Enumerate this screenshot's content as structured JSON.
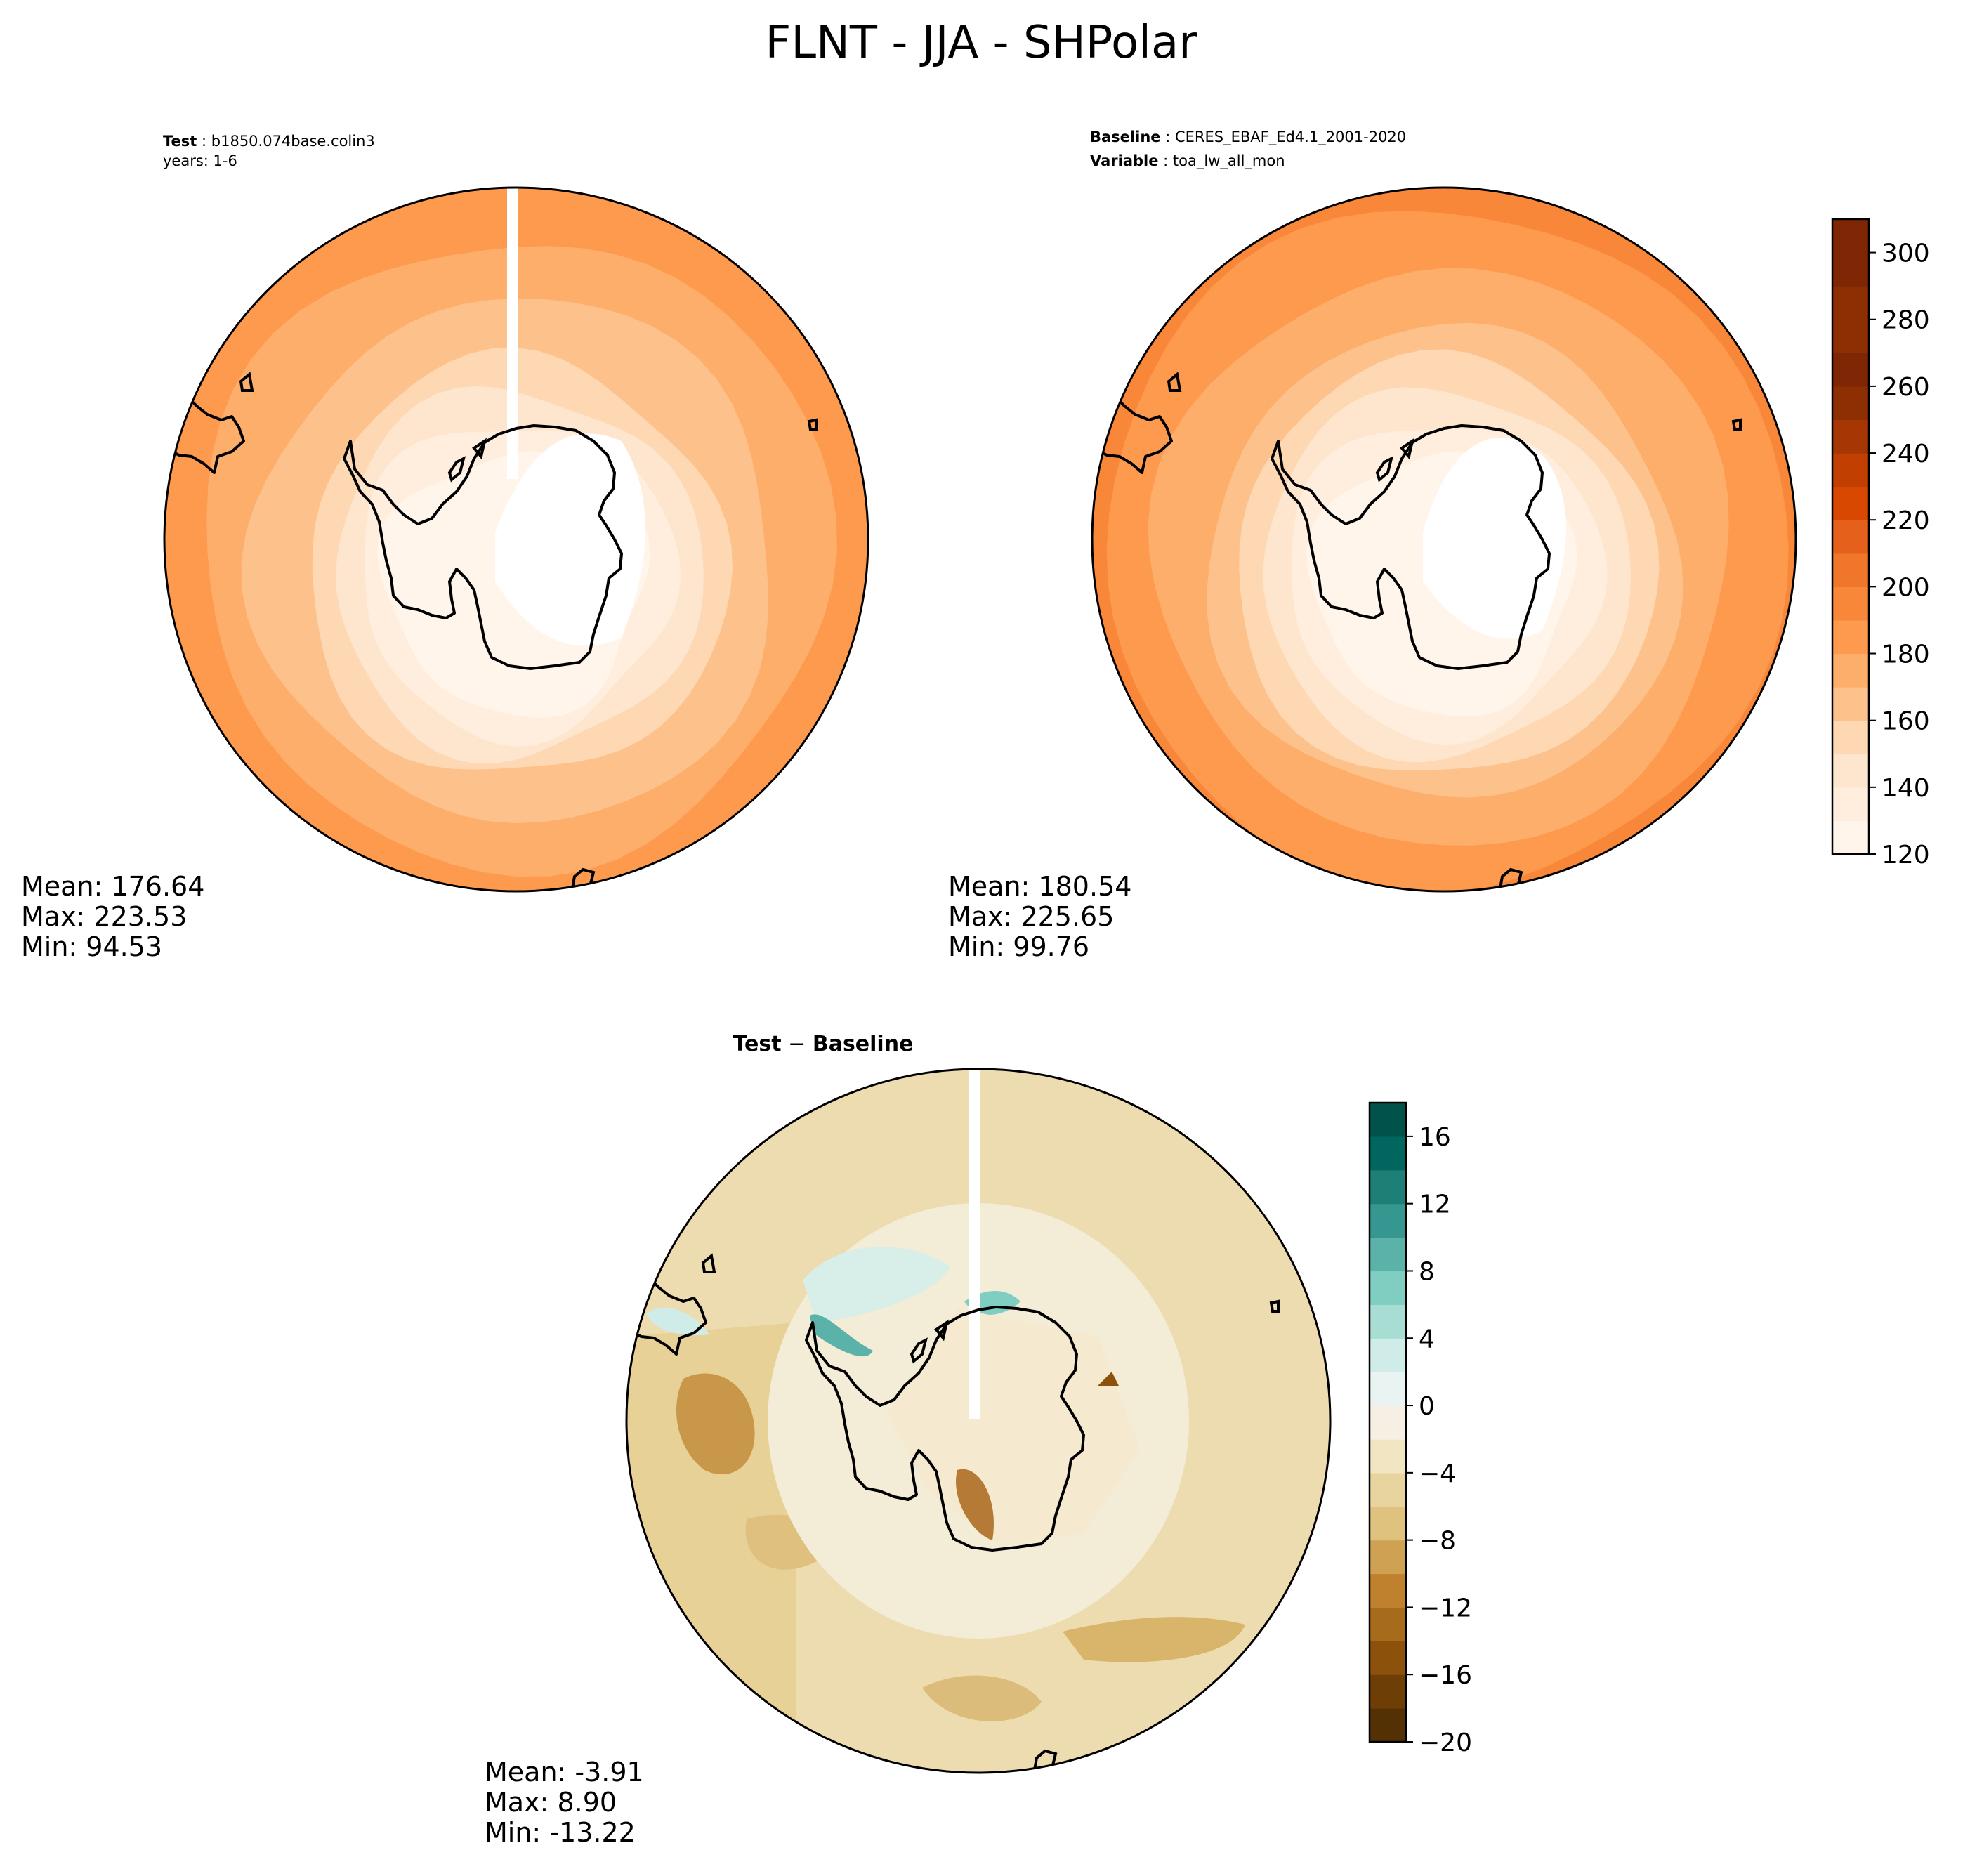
{
  "figure": {
    "title": "FLNT - JJA - SHPolar"
  },
  "colors": {
    "coast": "#000000",
    "missing_strip": "#ffffff",
    "oranges": [
      "#fff5eb",
      "#ffeedd",
      "#fee6ce",
      "#fdd8b3",
      "#fdc28c",
      "#fdae6b",
      "#fd9a4e",
      "#f8873a",
      "#f0772a",
      "#e5601a",
      "#d84801",
      "#c14001",
      "#a63603",
      "#8e2e03",
      "#7f2704"
    ],
    "diverging": [
      "#543005",
      "#6e3e07",
      "#8c510a",
      "#a76b1c",
      "#bf812d",
      "#cfa253",
      "#dfc27d",
      "#e8d49e",
      "#f1e6c1",
      "#f5f0e3",
      "#e9f4f2",
      "#d0ece8",
      "#a8ddd3",
      "#80cdc1",
      "#5ab2a8",
      "#35978f",
      "#1d7f76",
      "#01665e",
      "#01524b",
      "#003c30"
    ]
  },
  "panels": {
    "test": {
      "label_bold": "Test",
      "label_sep": " : ",
      "name": "b1850.074base.colin3",
      "years": "years: 1-6",
      "stats": {
        "mean": "Mean: 176.64",
        "max": "Max: 223.53",
        "min": "Min: 94.53"
      }
    },
    "baseline": {
      "label_bold": "Baseline",
      "label_sep": " : ",
      "name": "CERES_EBAF_Ed4.1_2001-2020",
      "variable_bold": "Variable",
      "variable": "toa_lw_all_mon",
      "stats": {
        "mean": "Mean: 180.54",
        "max": "Max: 225.65",
        "min": "Min: 99.76"
      }
    },
    "diff": {
      "title_left": "Test",
      "title_op": " − ",
      "title_right": "Baseline",
      "stats": {
        "mean": "Mean: -3.91",
        "max": "Max:  8.90",
        "min": "Min: -13.22"
      }
    }
  },
  "colorbars": {
    "main": {
      "ticks": [
        "120",
        "140",
        "160",
        "180",
        "200",
        "220",
        "240",
        "260",
        "280",
        "300"
      ],
      "range": [
        120,
        310
      ],
      "levels": 19
    },
    "diff": {
      "ticks": [
        "−20",
        "−16",
        "−12",
        "−8",
        "−4",
        "0",
        "4",
        "8",
        "12",
        "16"
      ],
      "range": [
        -20,
        18
      ],
      "levels": 19
    }
  },
  "chart_data": [
    {
      "type": "heatmap",
      "title": "Test : b1850.074base.colin3",
      "projection": "south-polar-stereographic",
      "colormap": "Oranges",
      "levels_range": [
        120,
        310
      ],
      "stats": {
        "mean": 176.64,
        "max": 223.53,
        "min": 94.53
      }
    },
    {
      "type": "heatmap",
      "title": "Baseline : CERES_EBAF_Ed4.1_2001-2020",
      "projection": "south-polar-stereographic",
      "colormap": "Oranges",
      "levels_range": [
        120,
        310
      ],
      "stats": {
        "mean": 180.54,
        "max": 225.65,
        "min": 99.76
      }
    },
    {
      "type": "heatmap",
      "title": "Test − Baseline",
      "projection": "south-polar-stereographic",
      "colormap": "BrBG",
      "levels_range": [
        -20,
        18
      ],
      "stats": {
        "mean": -3.91,
        "max": 8.9,
        "min": -13.22
      }
    }
  ]
}
